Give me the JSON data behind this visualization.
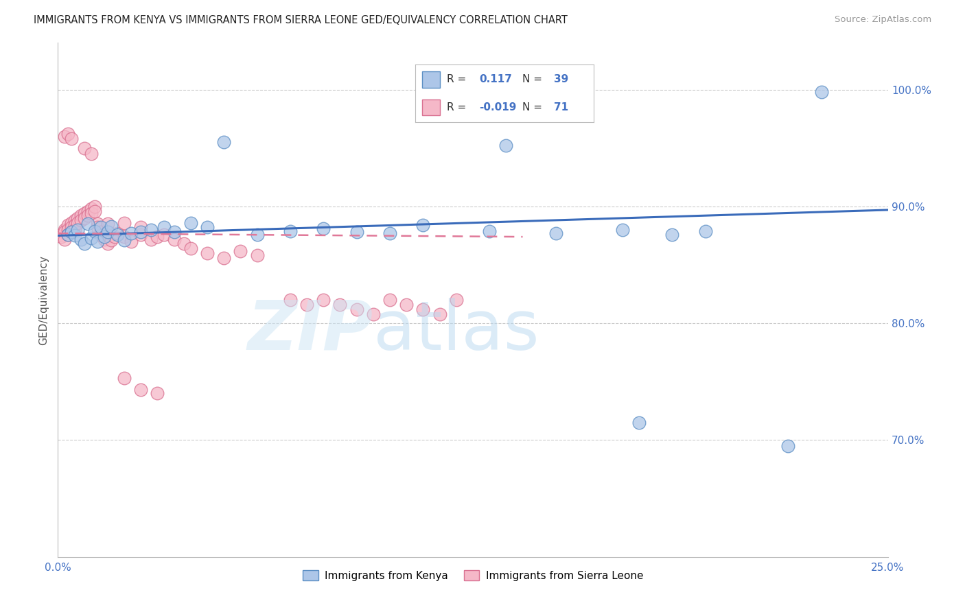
{
  "title": "IMMIGRANTS FROM KENYA VS IMMIGRANTS FROM SIERRA LEONE GED/EQUIVALENCY CORRELATION CHART",
  "source": "Source: ZipAtlas.com",
  "ylabel": "GED/Equivalency",
  "ytick_labels": [
    "70.0%",
    "80.0%",
    "90.0%",
    "100.0%"
  ],
  "ytick_values": [
    0.7,
    0.8,
    0.9,
    1.0
  ],
  "xmin": 0.0,
  "xmax": 0.25,
  "ymin": 0.6,
  "ymax": 1.04,
  "kenya_color": "#adc6e8",
  "kenya_edge_color": "#5b8ec4",
  "sl_color": "#f5b8c8",
  "sl_edge_color": "#d97090",
  "kenya_line_color": "#3a6bba",
  "sl_line_color": "#e07898",
  "kenya_line_x": [
    0.0,
    0.25
  ],
  "kenya_line_y": [
    0.875,
    0.897
  ],
  "sl_line_x": [
    0.0,
    0.14
  ],
  "sl_line_y": [
    0.877,
    0.874
  ],
  "kenya_x": [
    0.003,
    0.004,
    0.005,
    0.006,
    0.007,
    0.008,
    0.009,
    0.01,
    0.011,
    0.012,
    0.013,
    0.014,
    0.015,
    0.016,
    0.018,
    0.02,
    0.022,
    0.025,
    0.028,
    0.032,
    0.035,
    0.04,
    0.045,
    0.05,
    0.06,
    0.07,
    0.08,
    0.09,
    0.1,
    0.11,
    0.13,
    0.15,
    0.17,
    0.185,
    0.195,
    0.135,
    0.23,
    0.175,
    0.22
  ],
  "kenya_y": [
    0.876,
    0.878,
    0.875,
    0.88,
    0.872,
    0.868,
    0.885,
    0.873,
    0.879,
    0.87,
    0.882,
    0.874,
    0.878,
    0.883,
    0.876,
    0.871,
    0.877,
    0.878,
    0.88,
    0.882,
    0.878,
    0.886,
    0.882,
    0.955,
    0.876,
    0.879,
    0.881,
    0.878,
    0.877,
    0.884,
    0.879,
    0.877,
    0.88,
    0.876,
    0.879,
    0.952,
    0.998,
    0.715,
    0.695
  ],
  "sl_x": [
    0.001,
    0.001,
    0.002,
    0.002,
    0.002,
    0.003,
    0.003,
    0.003,
    0.004,
    0.004,
    0.004,
    0.005,
    0.005,
    0.005,
    0.006,
    0.006,
    0.007,
    0.007,
    0.008,
    0.008,
    0.009,
    0.009,
    0.01,
    0.01,
    0.011,
    0.011,
    0.012,
    0.012,
    0.013,
    0.013,
    0.014,
    0.015,
    0.015,
    0.016,
    0.017,
    0.018,
    0.02,
    0.022,
    0.025,
    0.028,
    0.03,
    0.032,
    0.035,
    0.038,
    0.04,
    0.045,
    0.05,
    0.055,
    0.06,
    0.07,
    0.075,
    0.08,
    0.085,
    0.09,
    0.095,
    0.1,
    0.105,
    0.11,
    0.115,
    0.12,
    0.002,
    0.003,
    0.004,
    0.008,
    0.01,
    0.015,
    0.02,
    0.025,
    0.02,
    0.025,
    0.03
  ],
  "sl_y": [
    0.876,
    0.874,
    0.88,
    0.878,
    0.872,
    0.884,
    0.88,
    0.876,
    0.886,
    0.882,
    0.878,
    0.888,
    0.884,
    0.88,
    0.89,
    0.886,
    0.892,
    0.888,
    0.894,
    0.89,
    0.896,
    0.892,
    0.898,
    0.894,
    0.9,
    0.896,
    0.885,
    0.882,
    0.878,
    0.875,
    0.872,
    0.868,
    0.875,
    0.871,
    0.874,
    0.877,
    0.874,
    0.87,
    0.876,
    0.872,
    0.874,
    0.876,
    0.872,
    0.868,
    0.864,
    0.86,
    0.856,
    0.862,
    0.858,
    0.82,
    0.816,
    0.82,
    0.816,
    0.812,
    0.808,
    0.82,
    0.816,
    0.812,
    0.808,
    0.82,
    0.96,
    0.962,
    0.958,
    0.95,
    0.945,
    0.885,
    0.886,
    0.882,
    0.753,
    0.743,
    0.74
  ]
}
